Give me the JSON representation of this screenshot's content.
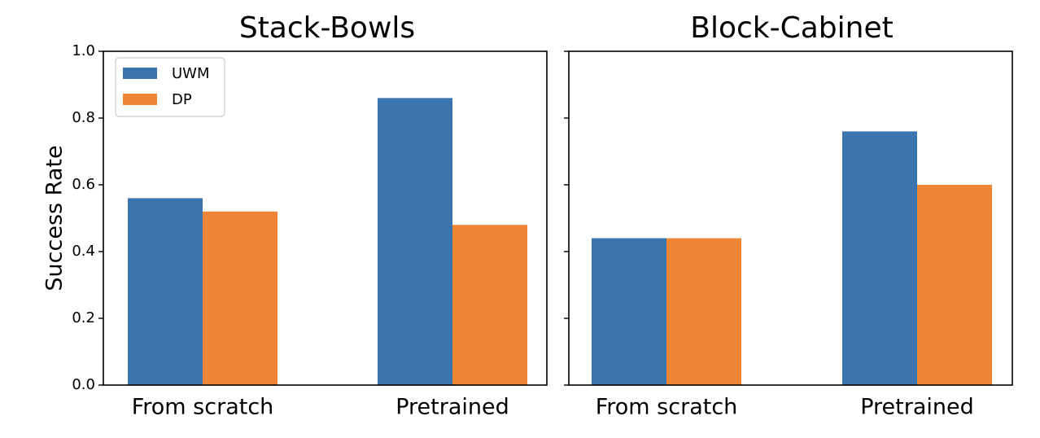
{
  "chart_data": {
    "type": "bar",
    "ylabel": "Success Rate",
    "ylim": [
      0,
      1.0
    ],
    "yticks": [
      "0.0",
      "0.2",
      "0.4",
      "0.6",
      "0.8",
      "1.0"
    ],
    "legend": {
      "placement": "top-left",
      "entries": [
        "UWM",
        "DP"
      ]
    },
    "colors": {
      "UWM": "#3b75af",
      "DP": "#ef8636"
    },
    "grid": false,
    "panels": [
      {
        "title": "Stack-Bowls",
        "categories": [
          "From scratch",
          "Pretrained"
        ],
        "series": [
          {
            "name": "UWM",
            "values": [
              0.56,
              0.86
            ]
          },
          {
            "name": "DP",
            "values": [
              0.52,
              0.48
            ]
          }
        ]
      },
      {
        "title": "Block-Cabinet",
        "categories": [
          "From scratch",
          "Pretrained"
        ],
        "series": [
          {
            "name": "UWM",
            "values": [
              0.44,
              0.76
            ]
          },
          {
            "name": "DP",
            "values": [
              0.44,
              0.6
            ]
          }
        ]
      }
    ]
  }
}
